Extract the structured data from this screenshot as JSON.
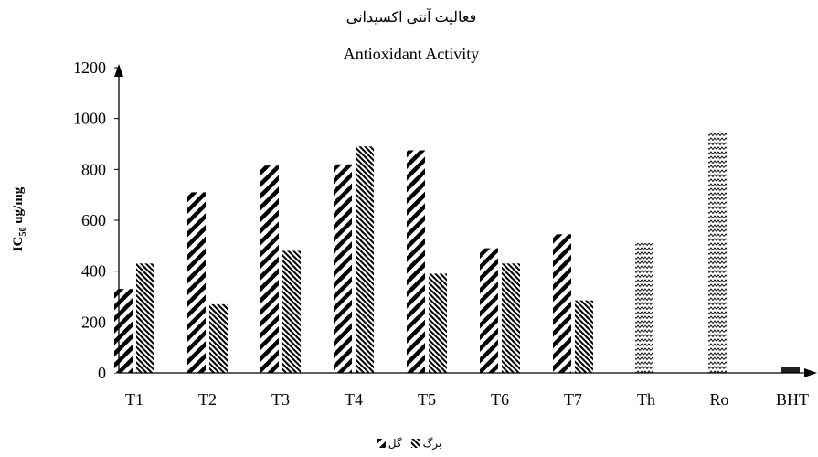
{
  "chart_data": {
    "type": "bar",
    "title": "فعالیت آنتی اکسیدانی",
    "subtitle": "Antioxidant Activity",
    "ylabel_main": "IC",
    "ylabel_sub": "50",
    "ylabel_rest": " ug/mg",
    "ylim": [
      0,
      1200
    ],
    "yticks": [
      "0",
      "200",
      "400",
      "600",
      "800",
      "1000",
      "1200"
    ],
    "categories": [
      "T1",
      "T2",
      "T3",
      "T4",
      "T5",
      "T6",
      "T7",
      "Th",
      "Ro",
      "BHT"
    ],
    "series": [
      {
        "name": "گل",
        "values": [
          330,
          710,
          815,
          820,
          875,
          490,
          545,
          null,
          null,
          null
        ]
      },
      {
        "name": "برگ",
        "values": [
          430,
          270,
          480,
          890,
          390,
          430,
          285,
          null,
          null,
          null
        ]
      },
      {
        "name": "",
        "values": [
          null,
          null,
          null,
          null,
          null,
          null,
          null,
          510,
          950,
          25
        ]
      }
    ],
    "grid": false,
    "legend_position": "bottom"
  }
}
